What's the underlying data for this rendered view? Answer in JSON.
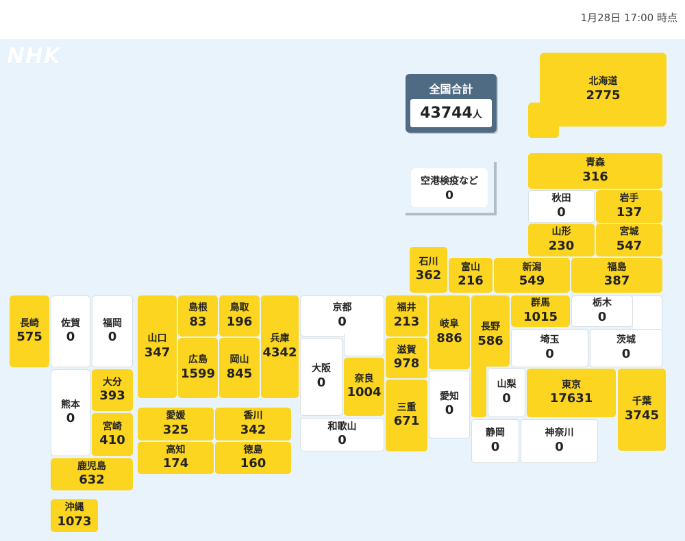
{
  "header": {
    "timestamp": "1月28日 17:00 時点"
  },
  "logo": "NHK",
  "total": {
    "label": "全国合計",
    "count": "43744",
    "unit": "人"
  },
  "quarantine": {
    "name": "空港検疫など",
    "count": "0"
  },
  "colors": {
    "highlight": "#fbd51f",
    "zero": "#ffffff",
    "sea": "#e8f3fb",
    "total_panel": "#4f6a83"
  },
  "prefectures": {
    "hokkaido": {
      "name": "北海道",
      "count": "2775"
    },
    "aomori": {
      "name": "青森",
      "count": "316"
    },
    "akita": {
      "name": "秋田",
      "count": "0"
    },
    "iwate": {
      "name": "岩手",
      "count": "137"
    },
    "yamagata": {
      "name": "山形",
      "count": "230"
    },
    "miyagi": {
      "name": "宮城",
      "count": "547"
    },
    "ishikawa": {
      "name": "石川",
      "count": "362"
    },
    "toyama": {
      "name": "富山",
      "count": "216"
    },
    "niigata": {
      "name": "新潟",
      "count": "549"
    },
    "fukushima": {
      "name": "福島",
      "count": "387"
    },
    "nagasaki": {
      "name": "長崎",
      "count": "575"
    },
    "saga": {
      "name": "佐賀",
      "count": "0"
    },
    "fukuoka": {
      "name": "福岡",
      "count": "0"
    },
    "yamaguchi": {
      "name": "山口",
      "count": "347"
    },
    "shimane": {
      "name": "島根",
      "count": "83"
    },
    "tottori": {
      "name": "鳥取",
      "count": "196"
    },
    "hyogo": {
      "name": "兵庫",
      "count": "4342"
    },
    "kyoto": {
      "name": "京都",
      "count": "0"
    },
    "fukui": {
      "name": "福井",
      "count": "213"
    },
    "gifu": {
      "name": "岐阜",
      "count": "886"
    },
    "nagano": {
      "name": "長野",
      "count": "586"
    },
    "gunma": {
      "name": "群馬",
      "count": "1015"
    },
    "tochigi": {
      "name": "栃木",
      "count": "0"
    },
    "saitama": {
      "name": "埼玉",
      "count": "0"
    },
    "ibaraki": {
      "name": "茨城",
      "count": "0"
    },
    "hiroshima": {
      "name": "広島",
      "count": "1599"
    },
    "okayama": {
      "name": "岡山",
      "count": "845"
    },
    "osaka": {
      "name": "大阪",
      "count": "0"
    },
    "nara": {
      "name": "奈良",
      "count": "1004"
    },
    "shiga": {
      "name": "滋賀",
      "count": "978"
    },
    "kumamoto": {
      "name": "熊本",
      "count": "0"
    },
    "oita": {
      "name": "大分",
      "count": "393"
    },
    "miyazaki": {
      "name": "宮崎",
      "count": "410"
    },
    "aichi": {
      "name": "愛知",
      "count": "0"
    },
    "mie": {
      "name": "三重",
      "count": "671"
    },
    "yamanashi": {
      "name": "山梨",
      "count": "0"
    },
    "tokyo": {
      "name": "東京",
      "count": "17631"
    },
    "chiba": {
      "name": "千葉",
      "count": "3745"
    },
    "ehime": {
      "name": "愛媛",
      "count": "325"
    },
    "kagawa": {
      "name": "香川",
      "count": "342"
    },
    "wakayama": {
      "name": "和歌山",
      "count": "0"
    },
    "shizuoka": {
      "name": "静岡",
      "count": "0"
    },
    "kanagawa": {
      "name": "神奈川",
      "count": "0"
    },
    "kochi": {
      "name": "高知",
      "count": "174"
    },
    "tokushima": {
      "name": "徳島",
      "count": "160"
    },
    "kagoshima": {
      "name": "鹿児島",
      "count": "632"
    },
    "okinawa": {
      "name": "沖縄",
      "count": "1073"
    }
  }
}
